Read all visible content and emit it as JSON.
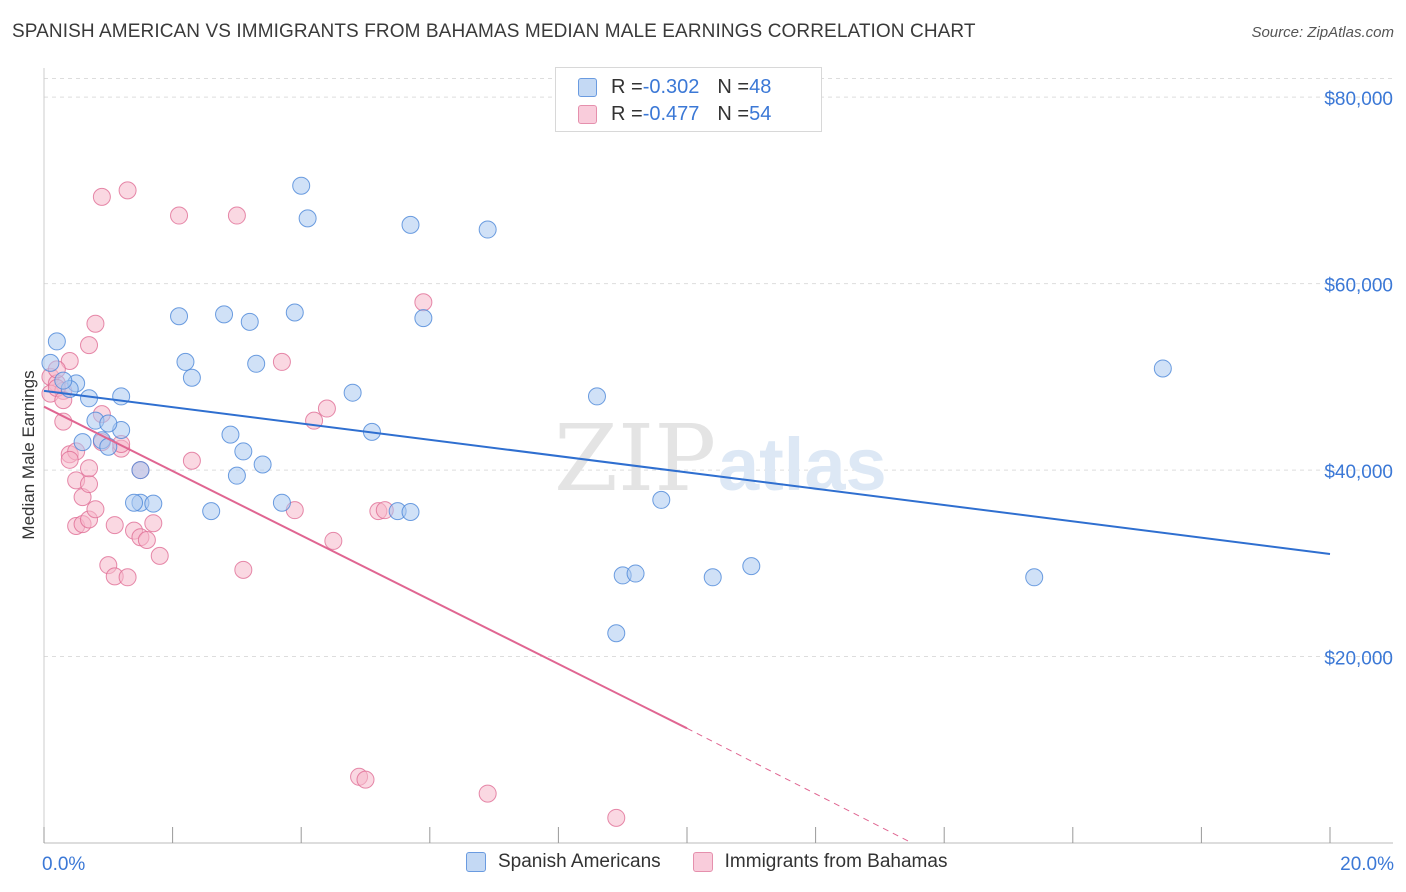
{
  "title": "SPANISH AMERICAN VS IMMIGRANTS FROM BAHAMAS MEDIAN MALE EARNINGS CORRELATION CHART",
  "source": "Source: ZipAtlas.com",
  "watermark": {
    "zip": "ZIP",
    "atlas": "atlas"
  },
  "legend": {
    "series1": {
      "r_label": "R = ",
      "r_value": "-0.302",
      "n_label": "N = ",
      "n_value": "48"
    },
    "series2": {
      "r_label": "R = ",
      "r_value": "-0.477",
      "n_label": "N = ",
      "n_value": "54"
    }
  },
  "colors": {
    "series1_fill": "#aac8f0",
    "series1_stroke": "#4a86d8",
    "series1_line": "#2f6fd0",
    "series2_fill": "#f5b8cb",
    "series2_stroke": "#e06d95",
    "series2_line": "#e06692",
    "tick_label": "#3b78d6",
    "grid": "#dddddd"
  },
  "chart_data": {
    "type": "scatter",
    "xlabel": "",
    "ylabel": "Median Male Earnings",
    "xlim": [
      0,
      20
    ],
    "ylim": [
      0,
      82000
    ],
    "x_tick_labels": [
      {
        "x": 0,
        "label": "0.0%"
      },
      {
        "x": 20,
        "label": "20.0%"
      }
    ],
    "y_ticks": [
      {
        "y": 20000,
        "label": "$20,000"
      },
      {
        "y": 40000,
        "label": "$40,000"
      },
      {
        "y": 60000,
        "label": "$60,000"
      },
      {
        "y": 80000,
        "label": "$80,000"
      }
    ],
    "grid": true,
    "legend_position": "top-center",
    "series": [
      {
        "name": "Spanish Americans",
        "trend": {
          "x0": 0,
          "y0": 48500,
          "x1": 20,
          "y1": 31000
        },
        "points": [
          [
            0.2,
            53800
          ],
          [
            0.1,
            51500
          ],
          [
            0.5,
            49300
          ],
          [
            0.7,
            47700
          ],
          [
            0.4,
            48700
          ],
          [
            0.8,
            45300
          ],
          [
            0.9,
            43200
          ],
          [
            0.6,
            43000
          ],
          [
            1.2,
            47900
          ],
          [
            1.2,
            44300
          ],
          [
            1.0,
            42500
          ],
          [
            1.5,
            40000
          ],
          [
            1.5,
            36500
          ],
          [
            1.7,
            36400
          ],
          [
            1.4,
            36500
          ],
          [
            2.1,
            56500
          ],
          [
            2.2,
            51600
          ],
          [
            2.3,
            49900
          ],
          [
            2.6,
            35600
          ],
          [
            2.8,
            56700
          ],
          [
            2.9,
            43800
          ],
          [
            3.0,
            39400
          ],
          [
            3.1,
            42000
          ],
          [
            3.2,
            55900
          ],
          [
            3.3,
            51400
          ],
          [
            3.4,
            40600
          ],
          [
            3.7,
            36500
          ],
          [
            3.9,
            56900
          ],
          [
            4.0,
            70500
          ],
          [
            4.1,
            67000
          ],
          [
            4.8,
            48300
          ],
          [
            5.1,
            44100
          ],
          [
            5.5,
            35600
          ],
          [
            5.7,
            35500
          ],
          [
            5.7,
            66300
          ],
          [
            5.9,
            56300
          ],
          [
            6.9,
            65800
          ],
          [
            8.6,
            47900
          ],
          [
            8.9,
            22500
          ],
          [
            9.0,
            28700
          ],
          [
            9.2,
            28900
          ],
          [
            9.6,
            36800
          ],
          [
            10.4,
            28500
          ],
          [
            11.0,
            29700
          ],
          [
            15.4,
            28500
          ],
          [
            17.4,
            50900
          ],
          [
            0.3,
            49600
          ],
          [
            1.0,
            45000
          ]
        ]
      },
      {
        "name": "Immigrants from Bahamas",
        "trend": {
          "x0": 0,
          "y0": 46800,
          "x1": 10,
          "y1": 12300,
          "dash_x1": 13.5,
          "dash_y1": 0
        },
        "points": [
          [
            0.1,
            50000
          ],
          [
            0.2,
            49300
          ],
          [
            0.1,
            48200
          ],
          [
            0.3,
            48500
          ],
          [
            0.4,
            51700
          ],
          [
            0.2,
            50800
          ],
          [
            0.3,
            45200
          ],
          [
            0.4,
            41700
          ],
          [
            0.5,
            42000
          ],
          [
            0.4,
            41100
          ],
          [
            0.5,
            38900
          ],
          [
            0.6,
            37100
          ],
          [
            0.7,
            38500
          ],
          [
            0.7,
            40200
          ],
          [
            0.5,
            34000
          ],
          [
            0.6,
            34200
          ],
          [
            0.7,
            34700
          ],
          [
            0.8,
            35800
          ],
          [
            0.9,
            46000
          ],
          [
            0.7,
            53400
          ],
          [
            0.8,
            55700
          ],
          [
            0.9,
            43000
          ],
          [
            1.0,
            29800
          ],
          [
            1.1,
            34100
          ],
          [
            1.1,
            28600
          ],
          [
            1.2,
            42300
          ],
          [
            1.3,
            28500
          ],
          [
            1.4,
            33500
          ],
          [
            1.5,
            40000
          ],
          [
            1.5,
            32800
          ],
          [
            1.6,
            32500
          ],
          [
            1.7,
            34300
          ],
          [
            0.9,
            69300
          ],
          [
            1.3,
            70000
          ],
          [
            2.1,
            67300
          ],
          [
            2.3,
            41000
          ],
          [
            3.0,
            67300
          ],
          [
            3.1,
            29300
          ],
          [
            3.7,
            51600
          ],
          [
            3.9,
            35700
          ],
          [
            4.2,
            45300
          ],
          [
            4.4,
            46600
          ],
          [
            4.5,
            32400
          ],
          [
            4.9,
            7100
          ],
          [
            5.0,
            6800
          ],
          [
            5.2,
            35600
          ],
          [
            5.3,
            35700
          ],
          [
            5.9,
            58000
          ],
          [
            6.9,
            5300
          ],
          [
            8.9,
            2700
          ],
          [
            0.2,
            48800
          ],
          [
            0.3,
            47500
          ],
          [
            1.8,
            30800
          ],
          [
            1.2,
            42800
          ]
        ]
      }
    ]
  }
}
